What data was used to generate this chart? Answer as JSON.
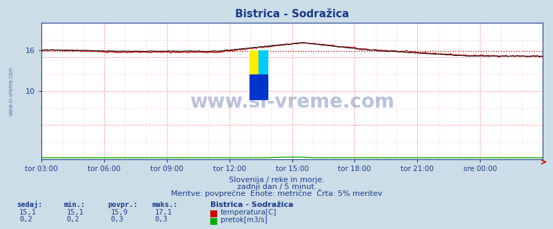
{
  "title": "Bistrica - Sodražica",
  "bg_color": "#ccdde8",
  "plot_bg_color": "#ffffff",
  "grid_color_major": "#ff9999",
  "grid_color_minor": "#ffcccc",
  "xlabel_ticks": [
    "tor 03:00",
    "tor 06:00",
    "tor 09:00",
    "tor 12:00",
    "tor 15:00",
    "tor 18:00",
    "tor 21:00",
    "sre 00:00"
  ],
  "ylim": [
    0,
    20
  ],
  "ytick_positions": [
    10,
    15,
    20
  ],
  "ytick_labels": [
    "10",
    "",
    ""
  ],
  "n_points": 288,
  "temp_min": 15.1,
  "temp_max": 17.1,
  "temp_avg": 15.9,
  "temp_current": 15.1,
  "flow_min": 0.2,
  "flow_max": 0.3,
  "flow_avg": 0.3,
  "flow_current": 0.2,
  "temp_color": "#cc0000",
  "black_color": "#111111",
  "flow_color": "#00aa00",
  "watermark_text": "www.si-vreme.com",
  "watermark_color": "#1a3a8a",
  "watermark_alpha": 0.3,
  "subtitle1": "Slovenija / reke in morje.",
  "subtitle2": "zadnji dan / 5 minut.",
  "subtitle3": "Meritve: povprečne  Enote: metrične  Črta: 5% meritev",
  "legend_title": "Bistrica - Sodražica",
  "legend_temp": "temperatura[C]",
  "legend_flow": "pretok[m3/s]",
  "table_headers": [
    "sedaj:",
    "min.:",
    "povpr.:",
    "maks.:"
  ],
  "table_temp": [
    "15,1",
    "15,1",
    "15,9",
    "17,1"
  ],
  "table_flow": [
    "0,2",
    "0,2",
    "0,3",
    "0,3"
  ],
  "font_color": "#1a3a8a",
  "title_color": "#1a3a8a",
  "tick_color": "#1a3a8a",
  "left_label": "www.si-vreme.com"
}
